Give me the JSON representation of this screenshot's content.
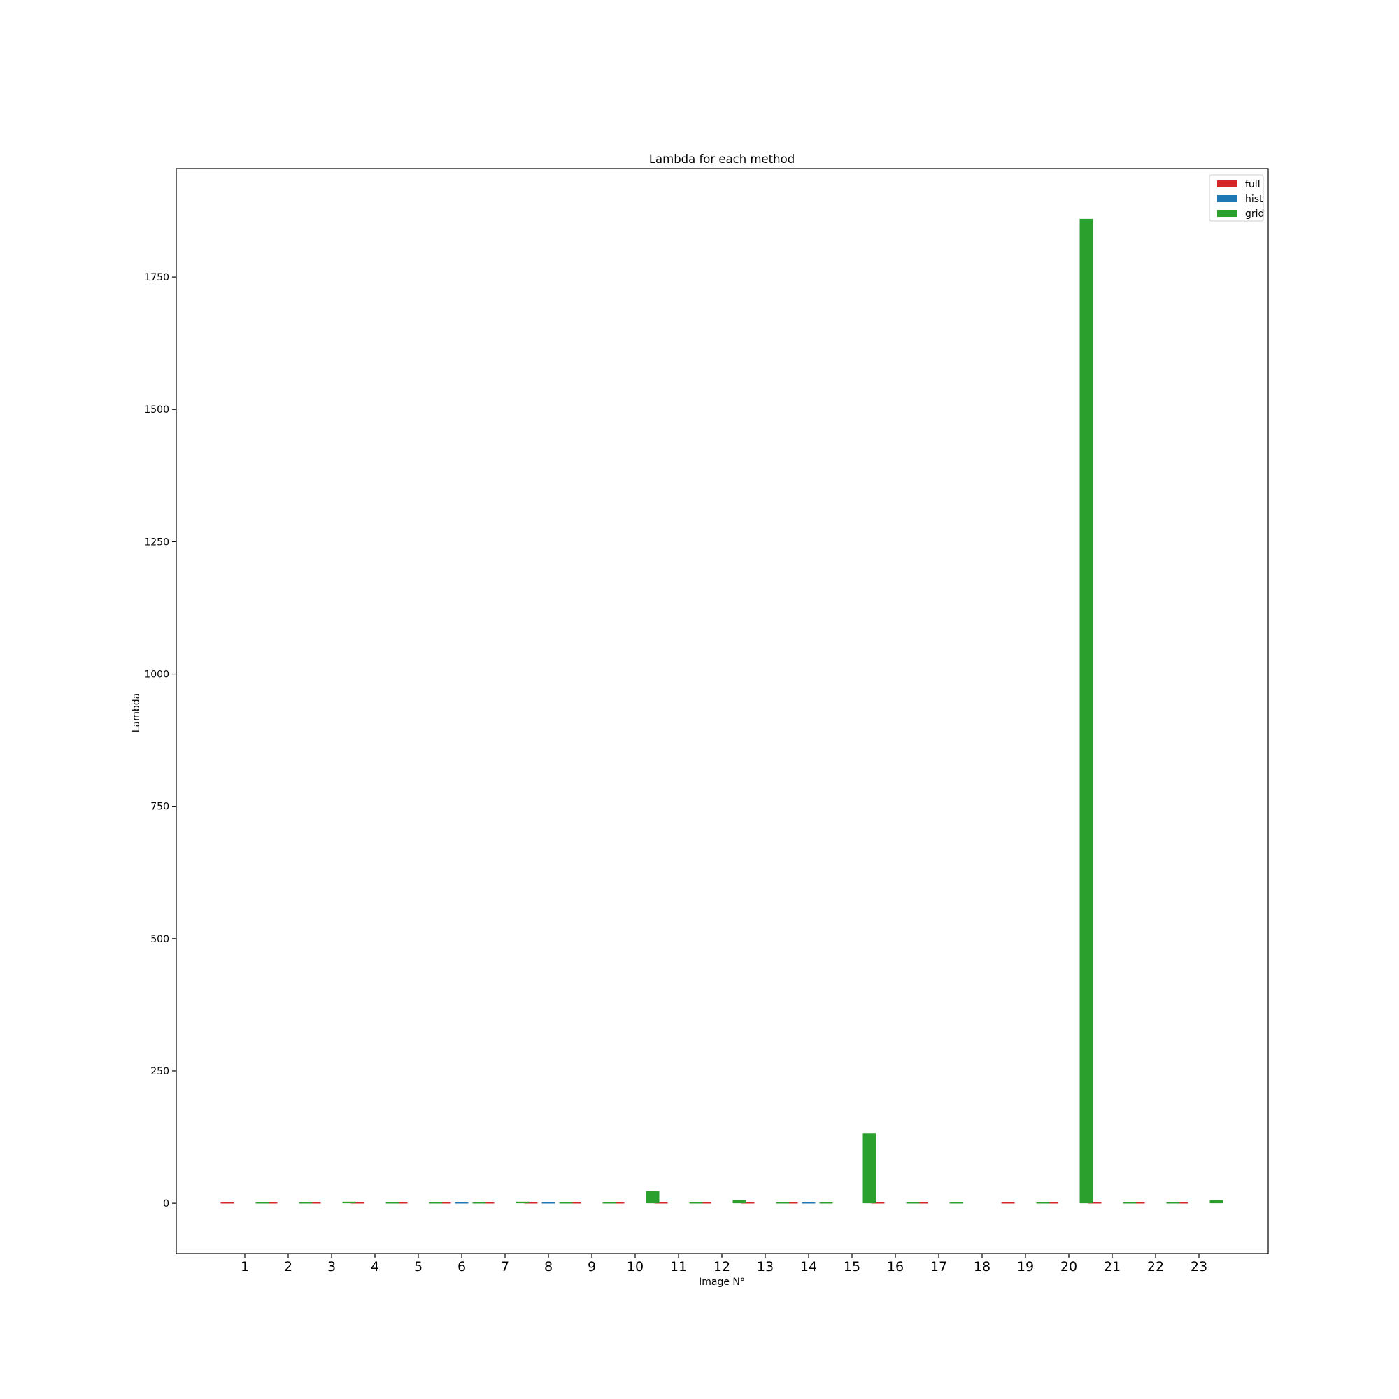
{
  "chart_data": {
    "type": "bar",
    "title": "Lambda for each method",
    "xlabel": "Image N°",
    "ylabel": "Lambda",
    "categories": [
      "1",
      "2",
      "3",
      "4",
      "5",
      "6",
      "7",
      "8",
      "9",
      "10",
      "11",
      "12",
      "13",
      "14",
      "15",
      "16",
      "17",
      "18",
      "19",
      "20",
      "21",
      "22",
      "23"
    ],
    "ylim": [
      -95,
      1955
    ],
    "yticks": [
      0,
      250,
      500,
      750,
      1000,
      1250,
      1500,
      1750
    ],
    "grid": false,
    "legend_position": "top-right",
    "series": [
      {
        "name": "full",
        "color": "#d62728",
        "values": [
          0.5,
          0.5,
          0.5,
          0.5,
          0.5,
          0.5,
          0.5,
          0.5,
          0.5,
          0.5,
          0.5,
          0.5,
          0.5,
          0.5,
          0,
          0.5,
          0.5,
          0,
          0.5,
          0.5,
          0.5,
          0.5,
          0.5
        ]
      },
      {
        "name": "hist",
        "color": "#1f77b4",
        "values": [
          0,
          0,
          0,
          0,
          0,
          0.5,
          0,
          0.5,
          0,
          0,
          0,
          0,
          0,
          0.5,
          0,
          0,
          0,
          0,
          0,
          0,
          0,
          0,
          0
        ]
      },
      {
        "name": "grid",
        "color": "#2ca02c",
        "values": [
          0.5,
          0.5,
          3,
          0.5,
          0.5,
          0.5,
          3,
          0.5,
          0.5,
          23,
          0.5,
          6,
          0.5,
          0.5,
          132,
          0.5,
          0.5,
          0,
          0.5,
          1860,
          0.5,
          0.5,
          6
        ]
      }
    ]
  }
}
